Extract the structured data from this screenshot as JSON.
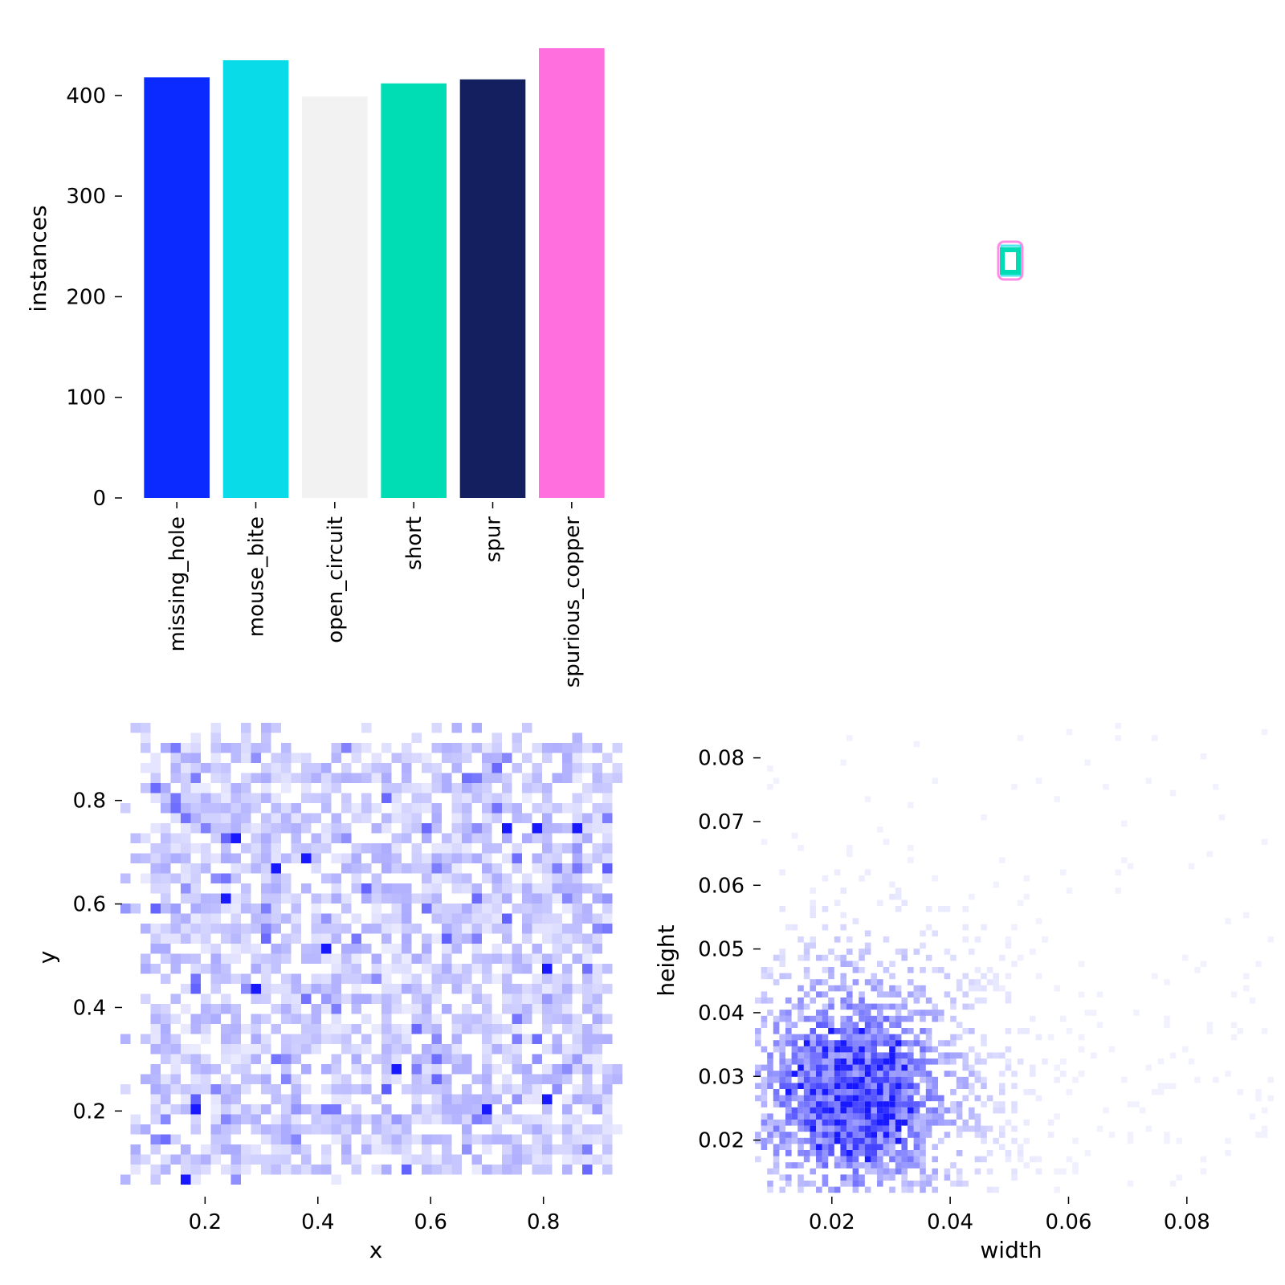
{
  "chart_data": [
    {
      "type": "bar",
      "categories": [
        "missing_hole",
        "mouse_bite",
        "open_circuit",
        "short",
        "spur",
        "spurious_copper"
      ],
      "values": [
        418,
        435,
        399,
        412,
        416,
        447
      ],
      "colors": [
        "#0a2aff",
        "#0adbe8",
        "#f2f2f2",
        "#00ddb5",
        "#141f60",
        "#ff6fdd"
      ],
      "xlabel": "",
      "ylabel": "instances",
      "ylim": [
        0,
        447
      ],
      "yticks": [
        0,
        100,
        200,
        300,
        400
      ],
      "ytick_labels": [
        "0",
        "100",
        "200",
        "300",
        "400"
      ],
      "grid": false,
      "legend": "none"
    },
    {
      "type": "box-overlay",
      "description_colors": [
        "#ff6fdd",
        "#00ddb5",
        "#0adbe8",
        "#0a2aff"
      ],
      "xlabel": "",
      "ylabel": ""
    },
    {
      "type": "heatmap",
      "xlabel": "x",
      "ylabel": "y",
      "xlim": [
        0.05,
        0.95
      ],
      "ylim": [
        0.05,
        0.95
      ],
      "xticks": [
        0.2,
        0.4,
        0.6,
        0.8
      ],
      "xtick_labels": [
        "0.2",
        "0.4",
        "0.6",
        "0.8"
      ],
      "yticks": [
        0.2,
        0.4,
        0.6,
        0.8
      ],
      "ytick_labels": [
        "0.2",
        "0.4",
        "0.6",
        "0.8"
      ],
      "distribution": "uniform",
      "color": "#0000ff",
      "grid": false
    },
    {
      "type": "heatmap",
      "xlabel": "width",
      "ylabel": "height",
      "xlim": [
        0.007,
        0.0955
      ],
      "ylim": [
        0.0115,
        0.0855
      ],
      "xticks": [
        0.02,
        0.04,
        0.06,
        0.08
      ],
      "xtick_labels": [
        "0.02",
        "0.04",
        "0.06",
        "0.08"
      ],
      "yticks": [
        0.02,
        0.03,
        0.04,
        0.05,
        0.06,
        0.07,
        0.08
      ],
      "ytick_labels": [
        "0.02",
        "0.03",
        "0.04",
        "0.05",
        "0.06",
        "0.07",
        "0.08"
      ],
      "peak": {
        "x": 0.023,
        "y": 0.028
      },
      "color": "#0000ff",
      "grid": false
    }
  ]
}
